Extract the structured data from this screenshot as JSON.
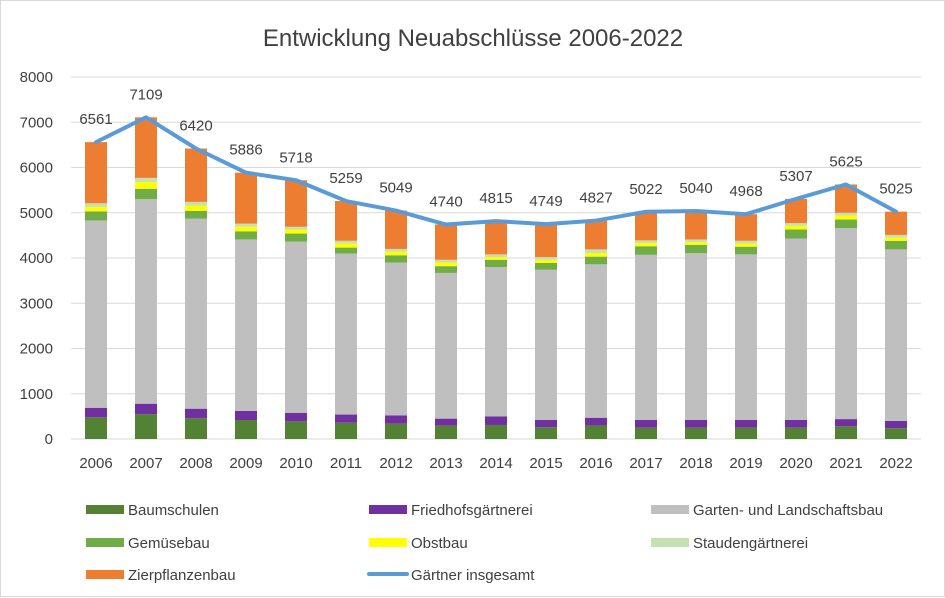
{
  "chart_data": {
    "type": "bar",
    "title": "Entwicklung Neuabschlüsse 2006-2022",
    "xlabel": "",
    "ylabel": "",
    "ylim": [
      0,
      8000
    ],
    "yticks": [
      0,
      1000,
      2000,
      3000,
      4000,
      5000,
      6000,
      7000,
      8000
    ],
    "grid": true,
    "legend_position": "bottom",
    "categories": [
      "2006",
      "2007",
      "2008",
      "2009",
      "2010",
      "2011",
      "2012",
      "2013",
      "2014",
      "2015",
      "2016",
      "2017",
      "2018",
      "2019",
      "2020",
      "2021",
      "2022"
    ],
    "stacked_series": [
      {
        "name": "Baumschulen",
        "color": "#548235",
        "values": [
          480,
          550,
          460,
          420,
          390,
          360,
          340,
          300,
          310,
          260,
          300,
          250,
          250,
          250,
          250,
          280,
          240
        ]
      },
      {
        "name": "Friedhofsgärtnerei",
        "color": "#7030a0",
        "values": [
          210,
          230,
          210,
          200,
          190,
          180,
          180,
          150,
          190,
          160,
          170,
          170,
          170,
          170,
          170,
          160,
          160
        ]
      },
      {
        "name": "Garten- und Landschaftsbau",
        "color": "#bfbfbf",
        "values": [
          4140,
          4520,
          4200,
          3790,
          3780,
          3560,
          3380,
          3220,
          3300,
          3320,
          3390,
          3650,
          3690,
          3660,
          4010,
          4220,
          3790
        ]
      },
      {
        "name": "Gemüsebau",
        "color": "#70ad47",
        "values": [
          200,
          230,
          170,
          180,
          180,
          130,
          160,
          150,
          160,
          150,
          170,
          190,
          180,
          170,
          200,
          190,
          190
        ]
      },
      {
        "name": "Obstbau",
        "color": "#ffff00",
        "values": [
          100,
          150,
          120,
          100,
          90,
          90,
          80,
          80,
          60,
          70,
          80,
          70,
          60,
          70,
          80,
          90,
          70
        ]
      },
      {
        "name": "Staudengärtnerei",
        "color": "#c5e0b3",
        "values": [
          80,
          90,
          80,
          70,
          60,
          60,
          60,
          60,
          60,
          60,
          80,
          60,
          60,
          60,
          60,
          60,
          60
        ]
      },
      {
        "name": "Zierpflanzenbau",
        "color": "#ed7d31",
        "values": [
          1351,
          1339,
          1180,
          1126,
          1028,
          879,
          849,
          780,
          735,
          729,
          637,
          632,
          630,
          588,
          537,
          625,
          515
        ]
      }
    ],
    "line_series": {
      "name": "Gärtner insgesamt",
      "color": "#5b9bd5",
      "values": [
        6561,
        7109,
        6420,
        5886,
        5718,
        5259,
        5049,
        4740,
        4815,
        4749,
        4827,
        5022,
        5040,
        4968,
        5307,
        5625,
        5025
      ]
    }
  }
}
